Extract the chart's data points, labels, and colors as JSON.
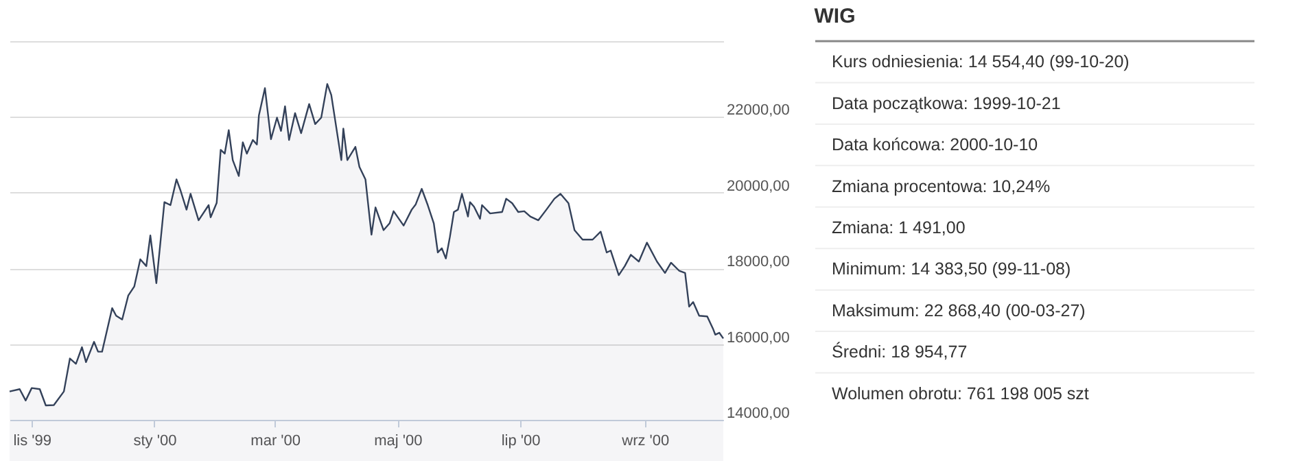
{
  "chart_data": [
    {
      "type": "area",
      "xlim": [
        "1999-10-21",
        "2000-10-10"
      ],
      "xticks": [
        {
          "value": "1999-11-01",
          "label": "lis '99"
        },
        {
          "value": "2000-01-01",
          "label": "sty '00"
        },
        {
          "value": "2000-03-01",
          "label": "mar '00"
        },
        {
          "value": "2000-05-01",
          "label": "maj '00"
        },
        {
          "value": "2000-07-01",
          "label": "lip '00"
        },
        {
          "value": "2000-09-01",
          "label": "wrz '00"
        }
      ],
      "ylim": [
        14000,
        24000
      ],
      "yticks": [
        {
          "value": 14000,
          "label": "14000,00"
        },
        {
          "value": 16000,
          "label": "16000,00"
        },
        {
          "value": 18000,
          "label": "18000,00"
        },
        {
          "value": 20000,
          "label": "20000,00"
        },
        {
          "value": 22000,
          "label": "22000,00"
        },
        {
          "value": 24000,
          "label": null
        }
      ],
      "grid": "y",
      "x": [
        "1999-10-21",
        "1999-10-26",
        "1999-10-29",
        "1999-11-01",
        "1999-11-05",
        "1999-11-08",
        "1999-11-12",
        "1999-11-17",
        "1999-11-20",
        "1999-11-23",
        "1999-11-26",
        "1999-11-28",
        "1999-12-02",
        "1999-12-04",
        "1999-12-06",
        "1999-12-11",
        "1999-12-13",
        "1999-12-16",
        "1999-12-19",
        "1999-12-22",
        "1999-12-25",
        "1999-12-28",
        "1999-12-30",
        "2000-01-02",
        "2000-01-06",
        "2000-01-09",
        "2000-01-12",
        "2000-01-14",
        "2000-01-17",
        "2000-01-19",
        "2000-01-23",
        "2000-01-28",
        "2000-01-29",
        "2000-02-01",
        "2000-02-03",
        "2000-02-05",
        "2000-02-07",
        "2000-02-09",
        "2000-02-12",
        "2000-02-14",
        "2000-02-16",
        "2000-02-19",
        "2000-02-21",
        "2000-02-22",
        "2000-02-25",
        "2000-02-28",
        "2000-03-02",
        "2000-03-04",
        "2000-03-06",
        "2000-03-08",
        "2000-03-11",
        "2000-03-14",
        "2000-03-18",
        "2000-03-21",
        "2000-03-24",
        "2000-03-27",
        "2000-03-29",
        "2000-04-03",
        "2000-04-04",
        "2000-04-06",
        "2000-04-10",
        "2000-04-12",
        "2000-04-15",
        "2000-04-18",
        "2000-04-20",
        "2000-04-24",
        "2000-04-27",
        "2000-04-29",
        "2000-05-04",
        "2000-05-08",
        "2000-05-10",
        "2000-05-13",
        "2000-05-16",
        "2000-05-19",
        "2000-05-21",
        "2000-05-23",
        "2000-05-25",
        "2000-05-27",
        "2000-05-29",
        "2000-05-31",
        "2000-06-02",
        "2000-06-05",
        "2000-06-06",
        "2000-06-08",
        "2000-06-11",
        "2000-06-12",
        "2000-06-16",
        "2000-06-22",
        "2000-06-24",
        "2000-06-27",
        "2000-06-30",
        "2000-07-03",
        "2000-07-06",
        "2000-07-10",
        "2000-07-14",
        "2000-07-18",
        "2000-07-21",
        "2000-07-25",
        "2000-07-28",
        "2000-08-01",
        "2000-08-06",
        "2000-08-10",
        "2000-08-13",
        "2000-08-15",
        "2000-08-19",
        "2000-08-22",
        "2000-08-25",
        "2000-08-29",
        "2000-09-02",
        "2000-09-07",
        "2000-09-11",
        "2000-09-14",
        "2000-09-18",
        "2000-09-21",
        "2000-09-23",
        "2000-09-25",
        "2000-09-28",
        "2000-10-02",
        "2000-10-05",
        "2000-10-06",
        "2000-10-08",
        "2000-10-10"
      ],
      "series": [
        {
          "color": "#34425a",
          "values": [
            14750,
            14810,
            14510,
            14840,
            14810,
            14380,
            14390,
            14750,
            15620,
            15480,
            15920,
            15525,
            16060,
            15800,
            15800,
            16950,
            16750,
            16650,
            17280,
            17520,
            18240,
            18060,
            18870,
            17610,
            19750,
            19670,
            20350,
            20060,
            19550,
            19970,
            19270,
            19670,
            19350,
            19730,
            21130,
            21030,
            21650,
            20860,
            20440,
            21330,
            21030,
            21390,
            21270,
            22040,
            22760,
            21410,
            21980,
            21630,
            22280,
            21390,
            22100,
            21570,
            22340,
            21810,
            21980,
            22870,
            22580,
            20860,
            21690,
            20860,
            21210,
            20680,
            20350,
            18890,
            19610,
            19010,
            19190,
            19510,
            19130,
            19550,
            19690,
            20100,
            19670,
            19190,
            18420,
            18530,
            18260,
            18830,
            19490,
            19550,
            19970,
            19370,
            19750,
            19630,
            19310,
            19670,
            19450,
            19490,
            19840,
            19720,
            19490,
            19510,
            19370,
            19270,
            19550,
            19840,
            19970,
            19720,
            19010,
            18760,
            18760,
            18970,
            18420,
            18470,
            17820,
            18060,
            18360,
            18180,
            18680,
            18180,
            17880,
            18150,
            17940,
            17880,
            16990,
            17110,
            16750,
            16730,
            16390,
            16250,
            16300,
            16150
          ]
        }
      ]
    },
    {
      "type": "other",
      "title": "WIG",
      "annotations": [
        "Kurs odniesienia: 14 554,40 (99-10-20)",
        "Data początkowa: 1999-10-21",
        "Data końcowa: 2000-10-10",
        "Zmiana procentowa: 10,24%",
        "Zmiana: 1 491,00",
        "Minimum: 14 383,50 (99-11-08)",
        "Maksimum: 22 868,40 (00-03-27)",
        "Średni: 18 954,77",
        "Wolumen obrotu: 761 198 005 szt"
      ]
    }
  ]
}
